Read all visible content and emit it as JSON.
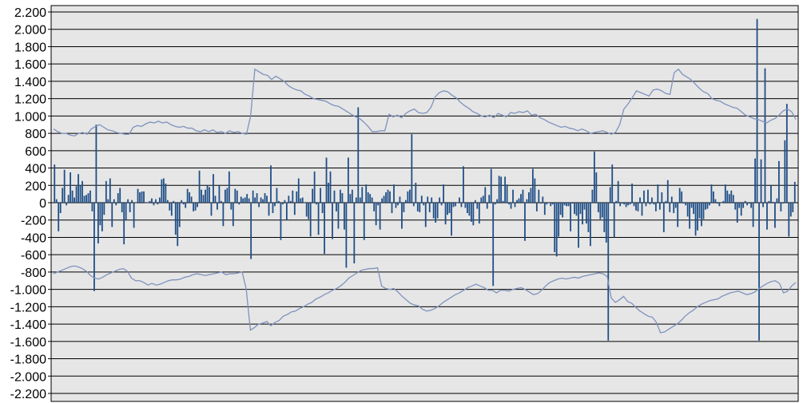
{
  "chart_data": {
    "type": "bar",
    "title": "",
    "xlabel": "",
    "ylabel": "",
    "ylim": [
      -2200,
      2200
    ],
    "y_ticks": [
      "2.200",
      "2.000",
      "1.800",
      "1.600",
      "1.400",
      "1.200",
      "1.000",
      "800",
      "600",
      "400",
      "200",
      "0",
      "-200",
      "-400",
      "-600",
      "-800",
      "-1.000",
      "-1.200",
      "-1.400",
      "-1.600",
      "-1.800",
      "-2.000",
      "-2.200"
    ],
    "y_tick_values": [
      2200,
      2000,
      1800,
      1600,
      1400,
      1200,
      1000,
      800,
      600,
      400,
      200,
      0,
      -200,
      -400,
      -600,
      -800,
      -1000,
      -1200,
      -1400,
      -1600,
      -1800,
      -2000,
      -2200
    ],
    "grid": true,
    "legend": "none",
    "colors": {
      "bars": "#1f4e86",
      "band": "#7f93bd",
      "plot_bg": "#e6e6e6",
      "grid": "#000000"
    },
    "series": [
      {
        "type": "bar",
        "values": [
          440,
          40,
          -330,
          -120,
          170,
          380,
          -30,
          90,
          350,
          140,
          60,
          190,
          330,
          200,
          250,
          80,
          90,
          110,
          140,
          -100,
          -1020,
          900,
          -470,
          -260,
          -330,
          -140,
          250,
          40,
          280,
          -280,
          40,
          -30,
          110,
          170,
          -110,
          -480,
          -200,
          40,
          -110,
          30,
          -290,
          0,
          160,
          120,
          130,
          130,
          0,
          0,
          20,
          50,
          -30,
          40,
          -20,
          60,
          270,
          280,
          220,
          30,
          -90,
          -150,
          20,
          -370,
          -500,
          -280,
          30,
          -20,
          -60,
          160,
          120,
          70,
          -100,
          -90,
          -50,
          370,
          150,
          90,
          150,
          200,
          180,
          -150,
          330,
          80,
          -80,
          200,
          20,
          -270,
          150,
          170,
          360,
          -80,
          -270,
          160,
          140,
          -20,
          70,
          50,
          60,
          100,
          50,
          -650,
          140,
          60,
          110,
          -50,
          60,
          40,
          110,
          80,
          -150,
          430,
          -120,
          -40,
          170,
          20,
          -430,
          -20,
          30,
          -200,
          80,
          20,
          140,
          -140,
          130,
          280,
          50,
          60,
          0,
          -160,
          -190,
          -390,
          160,
          360,
          -20,
          -370,
          170,
          -120,
          -590,
          520,
          230,
          360,
          -420,
          140,
          -100,
          -300,
          150,
          110,
          -310,
          -750,
          520,
          100,
          150,
          -700,
          60,
          1100,
          60,
          180,
          -430,
          210,
          120,
          100,
          60,
          -100,
          -260,
          -30,
          -310,
          50,
          80,
          120,
          150,
          130,
          -120,
          210,
          -60,
          -30,
          70,
          -300,
          -110,
          30,
          130,
          150,
          790,
          -40,
          230,
          -100,
          -110,
          80,
          -30,
          -280,
          70,
          -110,
          60,
          -180,
          -230,
          -180,
          60,
          -30,
          210,
          -250,
          -140,
          -120,
          -380,
          -50,
          -40,
          0,
          60,
          -50,
          420,
          -60,
          -120,
          -150,
          -220,
          -260,
          30,
          -70,
          -240,
          60,
          80,
          180,
          -70,
          90,
          390,
          -960,
          -20,
          40,
          310,
          300,
          20,
          300,
          210,
          -20,
          -70,
          150,
          -50,
          30,
          50,
          100,
          150,
          -440,
          40,
          120,
          170,
          390,
          280,
          -100,
          150,
          -10,
          70,
          -140,
          -20,
          0,
          -40,
          -20,
          -570,
          -620,
          -390,
          -140,
          -170,
          -30,
          -40,
          -40,
          -330,
          -10,
          -130,
          -150,
          -520,
          -130,
          -250,
          -80,
          -240,
          -340,
          -500,
          150,
          590,
          350,
          -110,
          -190,
          -170,
          -340,
          -460,
          -1590,
          180,
          440,
          -400,
          20,
          250,
          -40,
          -10,
          -20,
          -50,
          -30,
          -20,
          220,
          -40,
          -90,
          -100,
          60,
          -150,
          140,
          -40,
          150,
          -20,
          60,
          -20,
          -100,
          210,
          -80,
          120,
          -340,
          20,
          260,
          -110,
          70,
          -120,
          -60,
          -280,
          170,
          130,
          -10,
          -30,
          -160,
          -300,
          -60,
          -130,
          -380,
          -320,
          -180,
          -270,
          -190,
          -80,
          -70,
          -30,
          210,
          130,
          40,
          -10,
          -40,
          0,
          20,
          210,
          140,
          100,
          140,
          90,
          -80,
          -230,
          -60,
          -150,
          -60,
          20,
          -30,
          -10,
          -60,
          -280,
          510,
          2120,
          -1590,
          500,
          -50,
          1550,
          -310,
          20,
          200,
          10,
          -290,
          50,
          480,
          -100,
          -10,
          720,
          1140,
          -390,
          -160,
          -110,
          240
        ],
        "_note_": "bar series; x is an unlabeled sequence index"
      },
      {
        "type": "line",
        "name_hidden": true,
        "values": [
          850,
          820,
          800,
          800,
          780,
          770,
          800,
          810,
          790,
          850,
          880,
          900,
          870,
          840,
          830,
          810,
          800,
          790,
          790,
          870,
          890,
          880,
          910,
          930,
          920,
          940,
          920,
          930,
          900,
          880,
          870,
          880,
          860,
          860,
          830,
          820,
          840,
          820,
          840,
          810,
          820,
          800,
          830,
          810,
          820,
          800,
          790,
          1000,
          1540,
          1510,
          1480,
          1470,
          1420,
          1460,
          1430,
          1400,
          1350,
          1320,
          1300,
          1290,
          1250,
          1230,
          1200,
          1190,
          1180,
          1170,
          1140,
          1120,
          1110,
          1080,
          1050,
          1020,
          990,
          970,
          930,
          880,
          820,
          820,
          830,
          830,
          1020,
          990,
          1010,
          980,
          1030,
          1060,
          1080,
          1040,
          1030,
          1040,
          1100,
          1220,
          1270,
          1290,
          1280,
          1240,
          1210,
          1160,
          1120,
          1090,
          1050,
          1030,
          1000,
          990,
          1010,
          980,
          1030,
          1010,
          990,
          1040,
          1030,
          1050,
          1040,
          1060,
          1010,
          1020,
          980,
          960,
          930,
          910,
          890,
          870,
          880,
          860,
          850,
          830,
          850,
          830,
          800,
          810,
          820,
          830,
          810,
          790,
          810,
          900,
          1080,
          1140,
          1210,
          1290,
          1270,
          1250,
          1230,
          1300,
          1310,
          1290,
          1260,
          1250,
          1500,
          1540,
          1480,
          1450,
          1420,
          1370,
          1320,
          1280,
          1260,
          1200,
          1180,
          1170,
          1140,
          1120,
          1100,
          1090,
          1050,
          1010,
          990,
          970,
          960,
          940,
          920,
          950,
          970,
          1010,
          1060,
          1080,
          1050,
          960
        ]
      },
      {
        "type": "line",
        "values": [
          -820,
          -800,
          -780,
          -760,
          -740,
          -730,
          -740,
          -760,
          -790,
          -840,
          -870,
          -880,
          -860,
          -830,
          -810,
          -790,
          -770,
          -760,
          -790,
          -870,
          -900,
          -900,
          -920,
          -950,
          -930,
          -950,
          -940,
          -920,
          -900,
          -890,
          -890,
          -880,
          -860,
          -850,
          -830,
          -820,
          -830,
          -840,
          -830,
          -820,
          -810,
          -800,
          -830,
          -820,
          -820,
          -810,
          -800,
          -1000,
          -1470,
          -1440,
          -1400,
          -1390,
          -1370,
          -1420,
          -1380,
          -1360,
          -1310,
          -1290,
          -1260,
          -1250,
          -1220,
          -1200,
          -1170,
          -1150,
          -1110,
          -1090,
          -1060,
          -1040,
          -1010,
          -990,
          -960,
          -920,
          -870,
          -840,
          -810,
          -780,
          -770,
          -760,
          -760,
          -750,
          -960,
          -990,
          -1000,
          -990,
          -1030,
          -1080,
          -1120,
          -1160,
          -1180,
          -1190,
          -1230,
          -1250,
          -1240,
          -1220,
          -1190,
          -1150,
          -1120,
          -1090,
          -1060,
          -1040,
          -1010,
          -980,
          -960,
          -940,
          -960,
          -980,
          -1010,
          -1010,
          -1040,
          -1010,
          -1010,
          -1020,
          -1000,
          -990,
          -980,
          -1000,
          -1030,
          -1060,
          -1050,
          -1010,
          -960,
          -920,
          -900,
          -880,
          -870,
          -880,
          -870,
          -860,
          -870,
          -850,
          -840,
          -830,
          -820,
          -810,
          -820,
          -850,
          -1100,
          -1150,
          -1120,
          -1080,
          -1140,
          -1160,
          -1210,
          -1250,
          -1280,
          -1310,
          -1320,
          -1380,
          -1500,
          -1490,
          -1460,
          -1430,
          -1400,
          -1360,
          -1310,
          -1270,
          -1240,
          -1200,
          -1170,
          -1150,
          -1130,
          -1120,
          -1110,
          -1080,
          -1060,
          -1040,
          -1030,
          -1020,
          -1040,
          -1060,
          -1050,
          -1030,
          -990,
          -960,
          -930,
          -910,
          -900,
          -930,
          -1040,
          -1020,
          -960,
          -920
        ]
      }
    ]
  }
}
